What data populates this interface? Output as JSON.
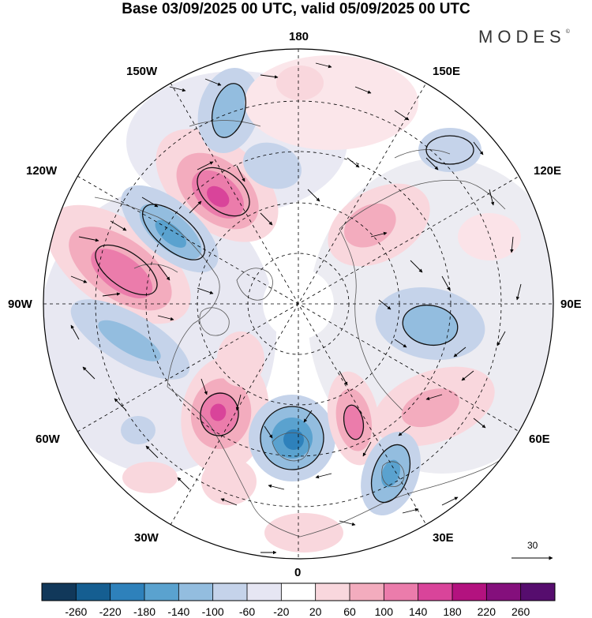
{
  "title": "Base 03/09/2025 00 UTC, valid 05/09/2025 00 UTC",
  "brand": "MODES",
  "brand_mark": "©",
  "longitudes": {
    "top": "180",
    "bottom": "0",
    "left": "90W",
    "right": "90E",
    "upper_left": "150W",
    "upper_right": "150E",
    "mid_left": "120W",
    "mid_right": "120E",
    "lower_left": "60W",
    "lower_right": "60E",
    "bottom_left": "30W",
    "bottom_right": "30E"
  },
  "reference_vector": {
    "label": "30"
  },
  "colorbar": {
    "labels": [
      "-260",
      "-220",
      "-180",
      "-140",
      "-100",
      "-60",
      "-20",
      "20",
      "60",
      "100",
      "140",
      "180",
      "220",
      "260"
    ],
    "colors": [
      "#11385a",
      "#155e91",
      "#2e81bb",
      "#5aa2cf",
      "#93bddf",
      "#c5d3ea",
      "#e6e6f3",
      "#ffffff",
      "#f9d7dd",
      "#f3acbe",
      "#eb7cab",
      "#d9449a",
      "#b3127f",
      "#840f7c",
      "#560d6e"
    ]
  },
  "anomalies": [
    {
      "label": "positive-anomaly",
      "value": 140
    },
    {
      "label": "positive-anomaly",
      "value": 180
    },
    {
      "label": "positive-anomaly",
      "value": 140
    },
    {
      "label": "positive-anomaly",
      "value": 180
    },
    {
      "label": "positive-anomaly",
      "value": 100
    },
    {
      "label": "positive-anomaly",
      "value": 100
    },
    {
      "label": "positive-anomaly",
      "value": 60
    },
    {
      "label": "positive-anomaly",
      "value": 60
    },
    {
      "label": "positive-anomaly",
      "value": 60
    },
    {
      "label": "negative-anomaly",
      "value": -220
    },
    {
      "label": "negative-anomaly",
      "value": -180
    },
    {
      "label": "negative-anomaly",
      "value": -140
    },
    {
      "label": "negative-anomaly",
      "value": -140
    },
    {
      "label": "negative-anomaly",
      "value": -100
    },
    {
      "label": "negative-anomaly",
      "value": -100
    },
    {
      "label": "negative-anomaly",
      "value": -100
    },
    {
      "label": "negative-anomaly",
      "value": -60
    }
  ]
}
